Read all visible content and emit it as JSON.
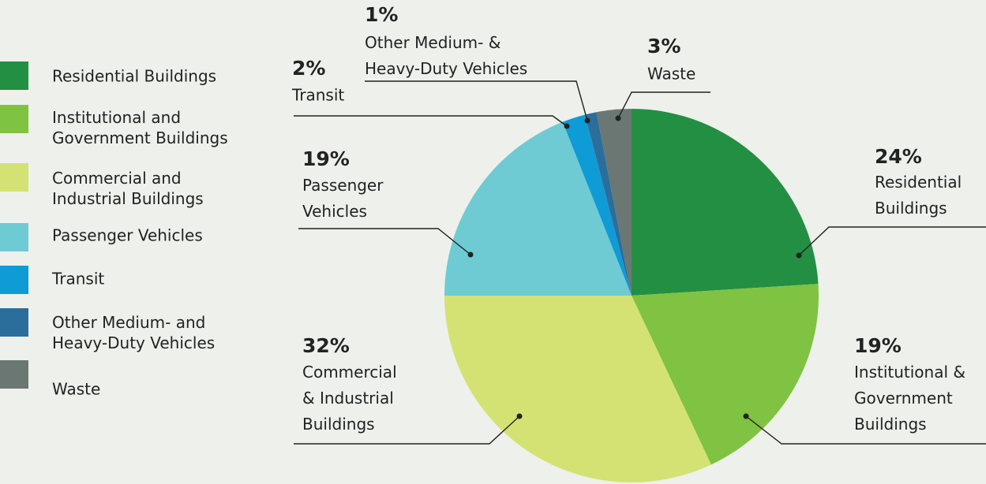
{
  "chart_data": {
    "type": "pie",
    "categories": [
      "Residential Buildings",
      "Institutional and\nGovernment Buildings",
      "Commercial and\nIndustrial Buildings",
      "Passenger Vehicles",
      "Transit",
      "Other Medium- and\nHeavy-Duty Vehicles",
      "Waste"
    ],
    "values": [
      24,
      19,
      32,
      19,
      2,
      1,
      3
    ],
    "value_labels": [
      "24%",
      "19%",
      "32%",
      "19%",
      "2%",
      "1%",
      "3%"
    ],
    "slice_labels": [
      "Residential\nBuildings",
      "Institutional &\nGovernment\nBuildings",
      "Commercial\n& Industrial\nBuildings",
      "Passenger\nVehicles",
      "Transit",
      "Other Medium- &\nHeavy-Duty Vehicles",
      "Waste"
    ],
    "colors": [
      "#238f43",
      "#80c241",
      "#d4e274",
      "#6ecbd3",
      "#0e9bd6",
      "#2b6e9c",
      "#6b7772"
    ],
    "legend": "left"
  }
}
